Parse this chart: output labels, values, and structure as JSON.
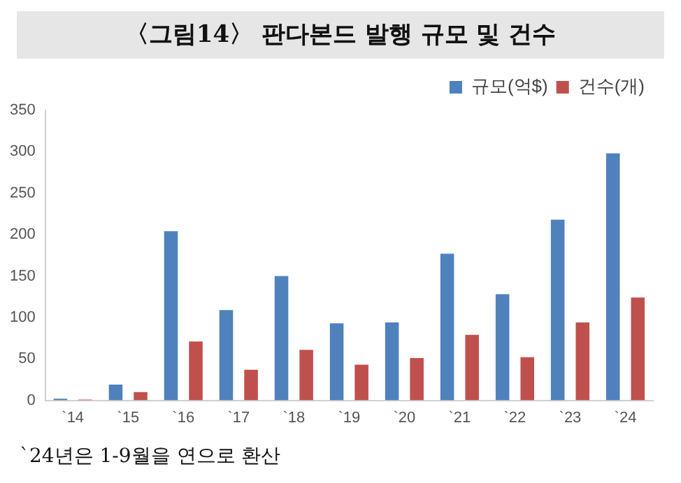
{
  "chart_data": {
    "type": "bar",
    "title": "〈그림14〉 판다본드 발행 규모 및 건수",
    "categories": [
      "`14",
      "`15",
      "`16",
      "`17",
      "`18",
      "`19",
      "`20",
      "`21",
      "`22",
      "`23",
      "`24"
    ],
    "series": [
      {
        "name": "규모(억$)",
        "color": "#4f81bd",
        "values": [
          2,
          19,
          204,
          109,
          150,
          93,
          94,
          177,
          128,
          218,
          298
        ]
      },
      {
        "name": "건수(개)",
        "color": "#c0504d",
        "values": [
          1,
          10,
          71,
          37,
          61,
          43,
          51,
          79,
          52,
          94,
          124
        ]
      }
    ],
    "ylim": [
      0,
      350
    ],
    "yticks": [
      0,
      50,
      100,
      150,
      200,
      250,
      300,
      350
    ],
    "grid": false,
    "legend": "top right",
    "annotations": [
      "`24년은 1-9월을 연으로 환산"
    ]
  }
}
